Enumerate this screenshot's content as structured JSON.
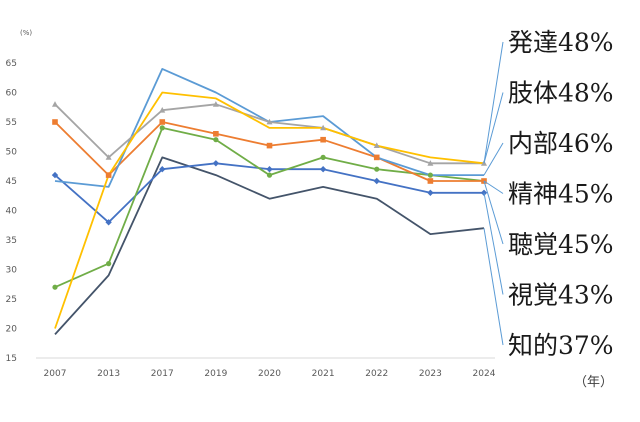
{
  "chart_data": {
    "type": "line",
    "unit_label": "(%)",
    "x_unit_label": "（年）",
    "categories": [
      "2007",
      "2013",
      "2017",
      "2019",
      "2020",
      "2021",
      "2022",
      "2023",
      "2024"
    ],
    "y_ticks": [
      "15",
      "20",
      "25",
      "30",
      "35",
      "40",
      "45",
      "50",
      "55",
      "60",
      "65"
    ],
    "ylim": [
      15,
      65
    ],
    "grid": false,
    "series": [
      {
        "name": "発達48%",
        "color": "#FFC000",
        "marker": "none",
        "values": [
          20,
          46,
          60,
          59,
          54,
          54,
          51,
          49,
          48
        ]
      },
      {
        "name": "肢体48%",
        "color": "#A5A5A5",
        "marker": "triangle",
        "values": [
          58,
          49,
          57,
          58,
          55,
          54,
          51,
          48,
          48
        ]
      },
      {
        "name": "内部46%",
        "color": "#5B9BD5",
        "marker": "none",
        "values": [
          45,
          44,
          64,
          60,
          55,
          56,
          49,
          46,
          46
        ]
      },
      {
        "name": "精神45%",
        "color": "#ED7D31",
        "marker": "square",
        "values": [
          55,
          46,
          55,
          53,
          51,
          52,
          49,
          45,
          45
        ]
      },
      {
        "name": "聴覚45%",
        "color": "#70AD47",
        "marker": "circle",
        "values": [
          27,
          31,
          54,
          52,
          46,
          49,
          47,
          46,
          45
        ]
      },
      {
        "name": "視覚43%",
        "color": "#4472C4",
        "marker": "diamond",
        "values": [
          46,
          38,
          47,
          48,
          47,
          47,
          45,
          43,
          43
        ]
      },
      {
        "name": "知的37%",
        "color": "#44546A",
        "marker": "none",
        "values": [
          19,
          29,
          49,
          46,
          42,
          44,
          42,
          36,
          37
        ]
      }
    ]
  }
}
